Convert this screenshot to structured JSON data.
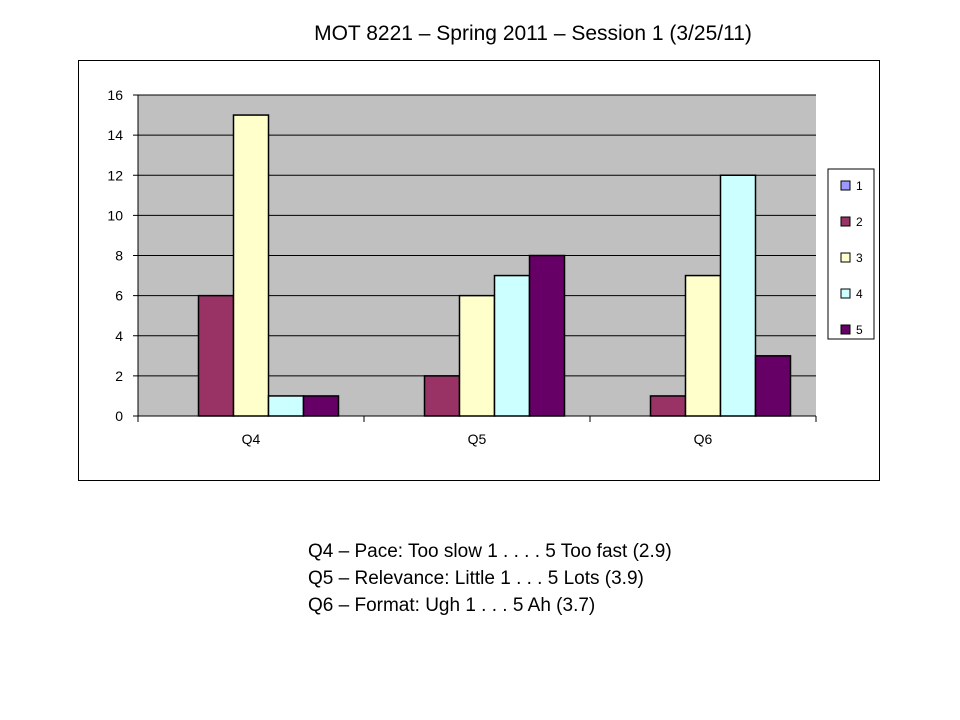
{
  "slide": {
    "title": "MOT 8221 – Spring 2011 – Session 1 (3/25/11)",
    "notes": [
      "Q4 – Pace: Too slow 1 . . . . 5 Too fast (2.9)",
      "Q5 – Relevance: Little 1 . . . 5 Lots (3.9)",
      "Q6 – Format: Ugh 1 . . . 5 Ah (3.7)"
    ]
  },
  "chart_data": {
    "type": "bar",
    "categories": [
      "Q4",
      "Q5",
      "Q6"
    ],
    "series": [
      {
        "name": "1",
        "color": "#9999FF",
        "values": [
          0,
          0,
          0
        ]
      },
      {
        "name": "2",
        "color": "#993366",
        "values": [
          6,
          2,
          1
        ]
      },
      {
        "name": "3",
        "color": "#FFFFCC",
        "values": [
          15,
          6,
          7
        ]
      },
      {
        "name": "4",
        "color": "#CCFFFF",
        "values": [
          1,
          7,
          12
        ]
      },
      {
        "name": "5",
        "color": "#660066",
        "values": [
          1,
          8,
          3
        ]
      }
    ],
    "ylim": [
      0,
      16
    ],
    "yticks": [
      "0",
      "2",
      "4",
      "6",
      "8",
      "10",
      "12",
      "14",
      "16"
    ],
    "grid": true,
    "plot_background": "#C0C0C0",
    "legend_position": "right"
  }
}
